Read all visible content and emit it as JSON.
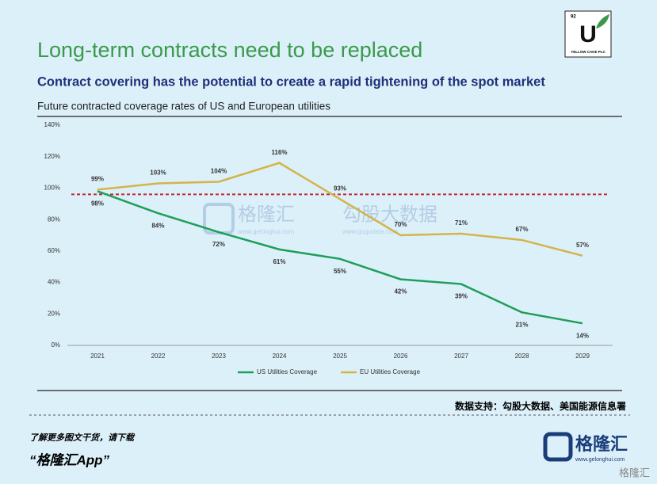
{
  "header": {
    "title": "Long-term contracts need to be replaced",
    "subtitle": "Contract covering has the potential to create a rapid tightening of the spot market",
    "logo_number": "92",
    "logo_letter": "U",
    "logo_name": "YELLOW CAKE PLC"
  },
  "chart_data": {
    "type": "line",
    "title": "Future contracted coverage rates of US and European utilities",
    "categories": [
      "2021",
      "2022",
      "2023",
      "2024",
      "2025",
      "2026",
      "2027",
      "2028",
      "2029"
    ],
    "series": [
      {
        "name": "US Utilities Coverage",
        "color": "#1e9e5a",
        "values": [
          98,
          84,
          72,
          61,
          55,
          42,
          39,
          21,
          14
        ],
        "value_labels": [
          "98%",
          "84%",
          "72%",
          "61%",
          "55%",
          "42%",
          "39%",
          "21%",
          "14%"
        ]
      },
      {
        "name": "EU Utilities Coverage",
        "color": "#d4b44a",
        "values": [
          99,
          103,
          104,
          116,
          93,
          70,
          71,
          67,
          57
        ],
        "value_labels": [
          "99%",
          "103%",
          "104%",
          "116%",
          "93%",
          "70%",
          "71%",
          "67%",
          "57%"
        ]
      }
    ],
    "reference_line": {
      "value": 96,
      "color": "#c0282d"
    },
    "ylim": [
      0,
      140
    ],
    "yticks": [
      {
        "value": 0,
        "label": "0%"
      },
      {
        "value": 20,
        "label": "20%"
      },
      {
        "value": 40,
        "label": "40%"
      },
      {
        "value": 60,
        "label": "60%"
      },
      {
        "value": 80,
        "label": "80%"
      },
      {
        "value": 100,
        "label": "100%"
      },
      {
        "value": 120,
        "label": "120%"
      },
      {
        "value": 140,
        "label": "140%"
      }
    ],
    "legend": "bottom"
  },
  "watermark": {
    "brand": "格隆汇",
    "brand_url": "www.gelonghui.com",
    "data_brand": "勾股大数据",
    "data_url": "www.gogudata.com"
  },
  "source": "数据支持：勾股大数据、美国能源信息署",
  "footer": {
    "prompt": "了解更多图文干货，请下载",
    "app": "“格隆汇App”",
    "logo": "格隆汇",
    "logo_url": "www.gelonghui.com",
    "corner": "格隆汇"
  }
}
